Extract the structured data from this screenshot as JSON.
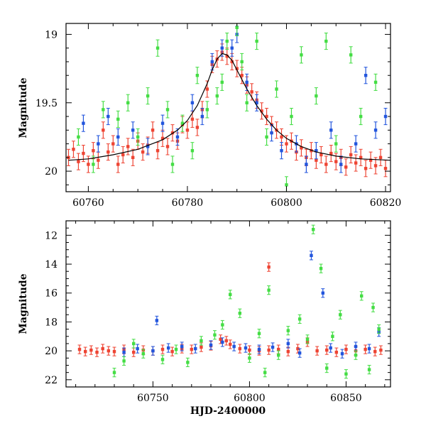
{
  "chart_data": [
    {
      "type": "scatter",
      "title": "",
      "xlabel": "",
      "ylabel": "Magnitude",
      "xlim": [
        60755.5,
        60821
      ],
      "ylim": [
        20.15,
        18.92
      ],
      "y_inverted": true,
      "x_ticks": [
        60760,
        60780,
        60800,
        60820
      ],
      "y_ticks": [
        19,
        19.5,
        20
      ],
      "y_tick_labels": [
        "19",
        "19.5",
        "20"
      ],
      "series_colors": [
        "#ee4433",
        "#2255dd",
        "#44dd44",
        "#000000"
      ],
      "series": [
        {
          "color": "#ee4433",
          "error_bars": true,
          "points": [
            [
              60756,
              19.9
            ],
            [
              60757,
              19.84
            ],
            [
              60758,
              19.93
            ],
            [
              60759,
              19.87
            ],
            [
              60760,
              19.95
            ],
            [
              60761,
              19.85
            ],
            [
              60762,
              19.92
            ],
            [
              60763,
              19.7
            ],
            [
              60764,
              19.86
            ],
            [
              60765,
              19.8
            ],
            [
              60766,
              19.95
            ],
            [
              60767,
              19.88
            ],
            [
              60768,
              19.82
            ],
            [
              60769,
              19.9
            ],
            [
              60770,
              19.78
            ],
            [
              60771,
              19.86
            ],
            [
              60772,
              19.81
            ],
            [
              60773,
              19.7
            ],
            [
              60774,
              19.85
            ],
            [
              60775,
              19.76
            ],
            [
              60776,
              19.82
            ],
            [
              60777,
              19.72
            ],
            [
              60778,
              19.78
            ],
            [
              60779,
              19.66
            ],
            [
              60780,
              19.7
            ],
            [
              60781,
              19.62
            ],
            [
              60782,
              19.68
            ],
            [
              60783,
              19.55
            ],
            [
              60784,
              19.4
            ],
            [
              60785,
              19.22
            ],
            [
              60786,
              19.18
            ],
            [
              60787,
              19.13
            ],
            [
              60788,
              19.16
            ],
            [
              60789,
              19.2
            ],
            [
              60790,
              19.25
            ],
            [
              60791,
              19.3
            ],
            [
              60792,
              19.37
            ],
            [
              60793,
              19.42
            ],
            [
              60794,
              19.48
            ],
            [
              60795,
              19.56
            ],
            [
              60796,
              19.6
            ],
            [
              60797,
              19.66
            ],
            [
              60798,
              19.7
            ],
            [
              60799,
              19.75
            ],
            [
              60800,
              19.8
            ],
            [
              60801,
              19.78
            ],
            [
              60802,
              19.86
            ],
            [
              60803,
              19.83
            ],
            [
              60804,
              19.9
            ],
            [
              60805,
              19.85
            ],
            [
              60806,
              19.92
            ],
            [
              60807,
              19.88
            ],
            [
              60808,
              19.95
            ],
            [
              60809,
              19.87
            ],
            [
              60810,
              19.93
            ],
            [
              60811,
              19.9
            ],
            [
              60812,
              19.97
            ],
            [
              60813,
              19.88
            ],
            [
              60814,
              19.94
            ],
            [
              60815,
              19.9
            ],
            [
              60816,
              19.98
            ],
            [
              60817,
              19.92
            ],
            [
              60818,
              19.96
            ],
            [
              60819,
              19.9
            ],
            [
              60820,
              19.98
            ]
          ]
        },
        {
          "color": "#2255dd",
          "error_bars": true,
          "points": [
            [
              60759,
              19.65
            ],
            [
              60762,
              19.8
            ],
            [
              60764,
              19.6
            ],
            [
              60766,
              19.75
            ],
            [
              60769,
              19.7
            ],
            [
              60772,
              19.82
            ],
            [
              60775,
              19.65
            ],
            [
              60778,
              19.75
            ],
            [
              60781,
              19.5
            ],
            [
              60783,
              19.6
            ],
            [
              60785,
              19.2
            ],
            [
              60787,
              19.1
            ],
            [
              60789,
              19.1
            ],
            [
              60790,
              19.0
            ],
            [
              60792,
              19.35
            ],
            [
              60794,
              19.5
            ],
            [
              60797,
              19.72
            ],
            [
              60799,
              19.85
            ],
            [
              60802,
              19.8
            ],
            [
              60804,
              19.95
            ],
            [
              60806,
              19.85
            ],
            [
              60809,
              19.7
            ],
            [
              60811,
              19.95
            ],
            [
              60814,
              19.8
            ],
            [
              60816,
              19.3
            ],
            [
              60818,
              19.7
            ],
            [
              60820,
              19.6
            ]
          ]
        },
        {
          "color": "#44dd44",
          "error_bars": true,
          "points": [
            [
              60758,
              19.75
            ],
            [
              60761,
              19.95
            ],
            [
              60763,
              19.55
            ],
            [
              60766,
              19.62
            ],
            [
              60768,
              19.5
            ],
            [
              60770,
              19.75
            ],
            [
              60772,
              19.45
            ],
            [
              60774,
              19.1
            ],
            [
              60776,
              19.55
            ],
            [
              60777,
              19.95
            ],
            [
              60779,
              19.65
            ],
            [
              60781,
              19.85
            ],
            [
              60782,
              19.3
            ],
            [
              60784,
              19.55
            ],
            [
              60786,
              19.45
            ],
            [
              60787,
              19.35
            ],
            [
              60788,
              19.05
            ],
            [
              60790,
              18.95
            ],
            [
              60791,
              19.2
            ],
            [
              60792,
              19.5
            ],
            [
              60794,
              19.05
            ],
            [
              60796,
              19.75
            ],
            [
              60798,
              19.4
            ],
            [
              60800,
              20.1
            ],
            [
              60801,
              19.6
            ],
            [
              60803,
              19.15
            ],
            [
              60806,
              19.45
            ],
            [
              60808,
              19.05
            ],
            [
              60810,
              19.8
            ],
            [
              60813,
              19.15
            ],
            [
              60815,
              19.6
            ],
            [
              60818,
              19.35
            ]
          ]
        },
        {
          "color": "#000000",
          "type": "line",
          "name": "",
          "points": [
            [
              60756,
              19.92
            ],
            [
              60760,
              19.91
            ],
            [
              60765,
              19.88
            ],
            [
              60770,
              19.84
            ],
            [
              60775,
              19.77
            ],
            [
              60778,
              19.7
            ],
            [
              60780,
              19.63
            ],
            [
              60782,
              19.52
            ],
            [
              60784,
              19.36
            ],
            [
              60785,
              19.26
            ],
            [
              60786,
              19.18
            ],
            [
              60787,
              19.14
            ],
            [
              60788,
              19.15
            ],
            [
              60789,
              19.19
            ],
            [
              60790,
              19.26
            ],
            [
              60792,
              19.4
            ],
            [
              60794,
              19.52
            ],
            [
              60796,
              19.62
            ],
            [
              60798,
              19.7
            ],
            [
              60800,
              19.76
            ],
            [
              60803,
              19.82
            ],
            [
              60806,
              19.86
            ],
            [
              60810,
              19.89
            ],
            [
              60815,
              19.91
            ],
            [
              60821,
              19.92
            ]
          ]
        }
      ]
    },
    {
      "type": "scatter",
      "title": "",
      "xlabel": "HJD-2400000",
      "ylabel": "Magnitude",
      "xlim": [
        60705,
        60873
      ],
      "ylim": [
        22.5,
        11
      ],
      "y_inverted": true,
      "x_ticks": [
        60750,
        60800,
        60850
      ],
      "y_ticks": [
        12,
        14,
        16,
        18,
        20,
        22
      ],
      "y_tick_labels": [
        "12",
        "14",
        "16",
        "18",
        "20",
        "22"
      ],
      "series_colors": [
        "#ee4433",
        "#2255dd",
        "#44dd44"
      ],
      "series": [
        {
          "color": "#ee4433",
          "error_bars": true,
          "points": [
            [
              60712,
              19.9
            ],
            [
              60715,
              20.05
            ],
            [
              60718,
              19.95
            ],
            [
              60721,
              20.1
            ],
            [
              60724,
              19.85
            ],
            [
              60727,
              20.0
            ],
            [
              60730,
              20.05
            ],
            [
              60735,
              19.9
            ],
            [
              60740,
              20.1
            ],
            [
              60745,
              19.95
            ],
            [
              60750,
              20.0
            ],
            [
              60755,
              19.9
            ],
            [
              60760,
              20.05
            ],
            [
              60765,
              19.85
            ],
            [
              60770,
              19.9
            ],
            [
              60775,
              19.75
            ],
            [
              60780,
              19.65
            ],
            [
              60785,
              19.2
            ],
            [
              60788,
              19.3
            ],
            [
              60790,
              19.55
            ],
            [
              60795,
              19.85
            ],
            [
              60800,
              19.95
            ],
            [
              60805,
              20.0
            ],
            [
              60810,
              19.95
            ],
            [
              60810,
              14.2
            ],
            [
              60815,
              19.9
            ],
            [
              60820,
              20.05
            ],
            [
              60825,
              19.85
            ],
            [
              60830,
              19.4
            ],
            [
              60835,
              20.0
            ],
            [
              60840,
              19.95
            ],
            [
              60845,
              20.1
            ],
            [
              60850,
              19.9
            ],
            [
              60855,
              20.0
            ],
            [
              60860,
              19.9
            ],
            [
              60865,
              20.05
            ],
            [
              60868,
              19.95
            ]
          ]
        },
        {
          "color": "#2255dd",
          "error_bars": true,
          "points": [
            [
              60735,
              20.1
            ],
            [
              60742,
              19.85
            ],
            [
              60750,
              20.0
            ],
            [
              60752,
              17.9
            ],
            [
              60758,
              19.8
            ],
            [
              60765,
              19.7
            ],
            [
              60772,
              19.85
            ],
            [
              60780,
              19.6
            ],
            [
              60786,
              19.4
            ],
            [
              60792,
              19.7
            ],
            [
              60798,
              19.8
            ],
            [
              60805,
              19.9
            ],
            [
              60812,
              19.75
            ],
            [
              60820,
              19.5
            ],
            [
              60826,
              20.15
            ],
            [
              60832,
              13.4
            ],
            [
              60838,
              16.0
            ],
            [
              60842,
              19.8
            ],
            [
              60848,
              20.2
            ],
            [
              60855,
              19.7
            ],
            [
              60862,
              19.85
            ],
            [
              60867,
              18.7
            ]
          ]
        },
        {
          "color": "#44dd44",
          "error_bars": true,
          "points": [
            [
              60730,
              21.5
            ],
            [
              60735,
              20.7
            ],
            [
              60740,
              19.5
            ],
            [
              60745,
              20.2
            ],
            [
              60755,
              20.6
            ],
            [
              60762,
              19.9
            ],
            [
              60768,
              20.8
            ],
            [
              60775,
              19.3
            ],
            [
              60782,
              18.9
            ],
            [
              60786,
              18.2
            ],
            [
              60790,
              16.1
            ],
            [
              60795,
              17.4
            ],
            [
              60800,
              20.5
            ],
            [
              60805,
              18.8
            ],
            [
              60808,
              21.5
            ],
            [
              60810,
              15.8
            ],
            [
              60815,
              20.3
            ],
            [
              60820,
              18.6
            ],
            [
              60826,
              17.8
            ],
            [
              60830,
              19.2
            ],
            [
              60833,
              11.6
            ],
            [
              60837,
              14.3
            ],
            [
              60840,
              21.2
            ],
            [
              60843,
              19.0
            ],
            [
              60847,
              17.5
            ],
            [
              60850,
              21.6
            ],
            [
              60855,
              20.3
            ],
            [
              60858,
              16.2
            ],
            [
              60862,
              21.3
            ],
            [
              60864,
              17.0
            ],
            [
              60867,
              18.5
            ]
          ]
        }
      ]
    }
  ]
}
